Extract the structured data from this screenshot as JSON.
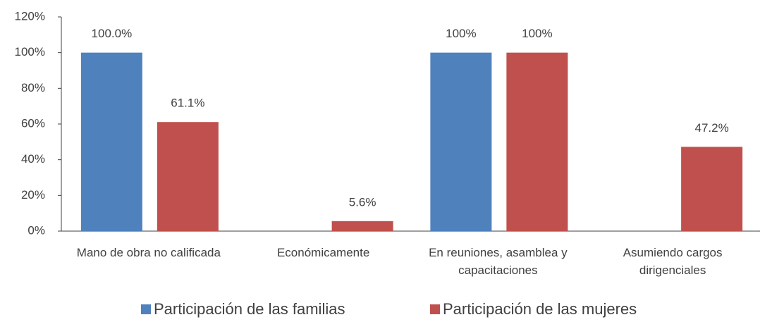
{
  "chart_data": {
    "type": "bar",
    "categories": [
      "Mano de obra no calificada",
      "Económicamente",
      "En reuniones, asamblea y capacitaciones",
      "Asumiendo cargos dirigenciales"
    ],
    "series": [
      {
        "name": "Participación de las familias",
        "color": "#4f81bd",
        "values": [
          100,
          null,
          100,
          null
        ],
        "value_labels": [
          "100.0%",
          null,
          "100%",
          null
        ]
      },
      {
        "name": "Participación de las mujeres",
        "color": "#c0504d",
        "values": [
          61.1,
          5.6,
          100,
          47.2
        ],
        "value_labels": [
          "61.1%",
          "5.6%",
          "100%",
          "47.2%"
        ]
      }
    ],
    "ylim": [
      0,
      120
    ],
    "yticks": [
      {
        "value": 0,
        "label": "0%"
      },
      {
        "value": 20,
        "label": "20%"
      },
      {
        "value": 40,
        "label": "40%"
      },
      {
        "value": 60,
        "label": "60%"
      },
      {
        "value": 80,
        "label": "80%"
      },
      {
        "value": 100,
        "label": "100%"
      },
      {
        "value": 120,
        "label": "120%"
      }
    ],
    "grid": false,
    "legend": "bottom"
  }
}
